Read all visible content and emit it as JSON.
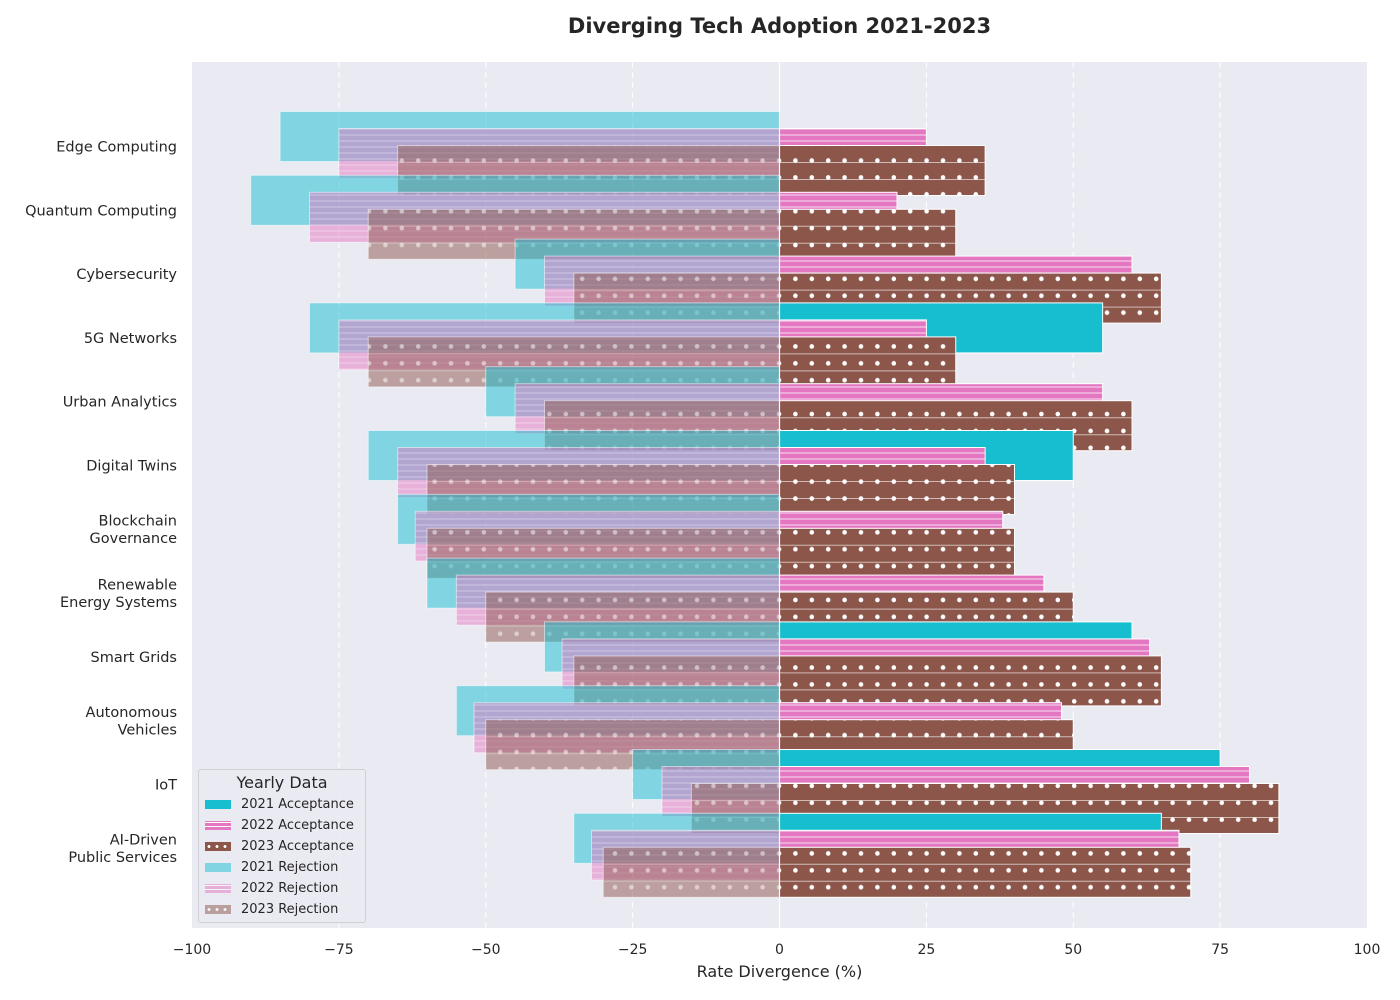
{
  "chart_data": {
    "type": "bar",
    "orientation": "horizontal-diverging",
    "title": "Diverging Tech Adoption 2021-2023",
    "xlabel": "Rate Divergence (%)",
    "ylabel": "",
    "xlim": [
      -100,
      100
    ],
    "xticks": [
      "−100",
      "−75",
      "−50",
      "−25",
      "0",
      "25",
      "50",
      "75",
      "100"
    ],
    "grid": true,
    "legend_title": "Yearly Data",
    "legend_position": "lower-left",
    "categories": [
      "Edge Computing",
      "Quantum Computing",
      "Cybersecurity",
      "5G Networks",
      "Urban Analytics",
      "Digital Twins",
      "Blockchain Governance",
      "Renewable Energy Systems",
      "Smart Grids",
      "Autonomous Vehicles",
      "IoT",
      "AI-Driven Public Services"
    ],
    "category_labels": [
      [
        "Edge Computing"
      ],
      [
        "Quantum Computing"
      ],
      [
        "Cybersecurity"
      ],
      [
        "5G Networks"
      ],
      [
        "Urban Analytics"
      ],
      [
        "Digital Twins"
      ],
      [
        "Blockchain",
        "Governance"
      ],
      [
        "Renewable",
        "Energy Systems"
      ],
      [
        "Smart Grids"
      ],
      [
        "Autonomous",
        "Vehicles"
      ],
      [
        "IoT"
      ],
      [
        "AI-Driven",
        "Public Services"
      ]
    ],
    "series": [
      {
        "name": "2021 Acceptance",
        "color": "#17becf",
        "pattern": "solid",
        "values": [
          0,
          0,
          0,
          55,
          0,
          50,
          0,
          0,
          60,
          0,
          75,
          65
        ]
      },
      {
        "name": "2022 Acceptance",
        "color": "#e377c2",
        "pattern": "hlines",
        "values": [
          25,
          20,
          60,
          25,
          55,
          35,
          38,
          45,
          63,
          48,
          80,
          68
        ]
      },
      {
        "name": "2023 Acceptance",
        "color": "#8c564b",
        "pattern": "dots",
        "values": [
          35,
          30,
          65,
          30,
          60,
          40,
          40,
          50,
          65,
          50,
          85,
          70
        ]
      },
      {
        "name": "2021 Rejection",
        "color": "#17becf",
        "pattern": "solid",
        "alpha": 0.5,
        "values": [
          -85,
          -90,
          -45,
          -80,
          -50,
          -70,
          -65,
          -60,
          -40,
          -55,
          -25,
          -35
        ]
      },
      {
        "name": "2022 Rejection",
        "color": "#e377c2",
        "pattern": "hlines",
        "alpha": 0.5,
        "values": [
          -75,
          -80,
          -40,
          -75,
          -45,
          -65,
          -62,
          -55,
          -37,
          -52,
          -20,
          -32
        ]
      },
      {
        "name": "2023 Rejection",
        "color": "#8c564b",
        "pattern": "dots",
        "alpha": 0.5,
        "values": [
          -65,
          -70,
          -35,
          -70,
          -40,
          -60,
          -60,
          -50,
          -35,
          -50,
          -15,
          -30
        ]
      }
    ]
  },
  "colors": {
    "plot_background": "#eaeaf2",
    "grid": "#ffffff",
    "text": "#262626"
  }
}
